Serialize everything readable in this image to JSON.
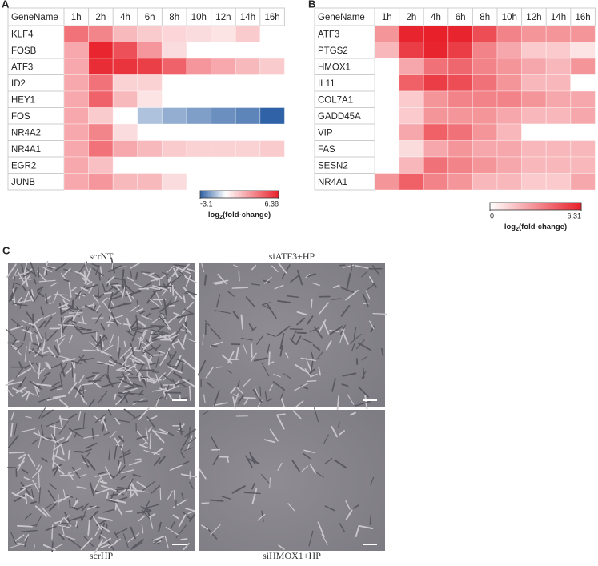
{
  "chart_data": [
    {
      "type": "heatmap",
      "panel_label": "A",
      "row_header": "GeneName",
      "columns": [
        "1h",
        "2h",
        "4h",
        "6h",
        "8h",
        "10h",
        "12h",
        "14h",
        "16h"
      ],
      "rows": [
        "KLF4",
        "FOSB",
        "ATF3",
        "ID2",
        "HEY1",
        "FOS",
        "NR4A2",
        "NR4A1",
        "EGR2",
        "JUNB"
      ],
      "values": [
        [
          4,
          3.5,
          2,
          1.5,
          1.2,
          1,
          0.8,
          1.5,
          null
        ],
        [
          2.5,
          6.2,
          5,
          3,
          1,
          null,
          null,
          null,
          null
        ],
        [
          2.5,
          6,
          5.8,
          5.5,
          4.5,
          3,
          2.5,
          2,
          1.5
        ],
        [
          2.5,
          4,
          1.3,
          1.3,
          null,
          null,
          null,
          null,
          null
        ],
        [
          2.5,
          4.5,
          2,
          0.8,
          null,
          null,
          null,
          null,
          null
        ],
        [
          2.5,
          1.5,
          null,
          -1.2,
          -1.6,
          -1.9,
          -2.2,
          -2.4,
          -3.1
        ],
        [
          2.5,
          3.5,
          1,
          null,
          null,
          null,
          null,
          null,
          null
        ],
        [
          2.5,
          4,
          2.5,
          2,
          1.5,
          1.3,
          1.3,
          1.3,
          1.5
        ],
        [
          2.5,
          1.8,
          null,
          null,
          null,
          null,
          null,
          null,
          null
        ],
        [
          2.5,
          3,
          2,
          2,
          1,
          null,
          null,
          null,
          null
        ]
      ],
      "colormap": [
        "#2f62a6",
        "#ffffff",
        "#e8202a"
      ],
      "colorbar": {
        "lim": [
          -3.1,
          6.38
        ],
        "ticks": [
          -3.1,
          6.38
        ],
        "label": [
          "log",
          "2",
          "(fold-change)"
        ]
      }
    },
    {
      "type": "heatmap",
      "panel_label": "B",
      "row_header": "GeneName",
      "columns": [
        "1h",
        "2h",
        "4h",
        "6h",
        "8h",
        "10h",
        "12h",
        "14h",
        "16h"
      ],
      "rows": [
        "ATF3",
        "PTGS2",
        "HMOX1",
        "IL11",
        "COL7A1",
        "GADD45A",
        "VIP",
        "FAS",
        "SESN2",
        "NR4A1"
      ],
      "values": [
        [
          3,
          6.2,
          6.3,
          6.2,
          5,
          3.5,
          3,
          3,
          3
        ],
        [
          2,
          5.5,
          6.2,
          5.5,
          3.5,
          2.5,
          1.5,
          1.5,
          0.8
        ],
        [
          0,
          2.5,
          4,
          4.3,
          3.5,
          3,
          2.5,
          2,
          3
        ],
        [
          0,
          4.5,
          5.5,
          5,
          4,
          3,
          2,
          2,
          0
        ],
        [
          0,
          1.5,
          3,
          3.5,
          3.5,
          3.5,
          3,
          2.5,
          2.5
        ],
        [
          0,
          1.5,
          3,
          3,
          3,
          2.5,
          2,
          2,
          2.5
        ],
        [
          0,
          2.5,
          4.5,
          4,
          3,
          2,
          0,
          0,
          0
        ],
        [
          0,
          1,
          2.5,
          3,
          2.5,
          2.5,
          2,
          2,
          2
        ],
        [
          0,
          2,
          4,
          3.5,
          3,
          2.5,
          2,
          2,
          2
        ],
        [
          3,
          4.5,
          3.5,
          3,
          2,
          2,
          1.5,
          1.5,
          2.5
        ]
      ],
      "colormap": [
        "#ffffff",
        "#e8202a"
      ],
      "colorbar": {
        "lim": [
          0,
          6.31
        ],
        "ticks": [
          0,
          6.31
        ],
        "label": [
          "log",
          "2",
          "(fold-change)"
        ]
      }
    }
  ],
  "panel_c": {
    "panel_label": "C",
    "images": [
      "scrNT",
      "siATF3+HP",
      "scrHP",
      "siHMOX1+HP"
    ]
  }
}
